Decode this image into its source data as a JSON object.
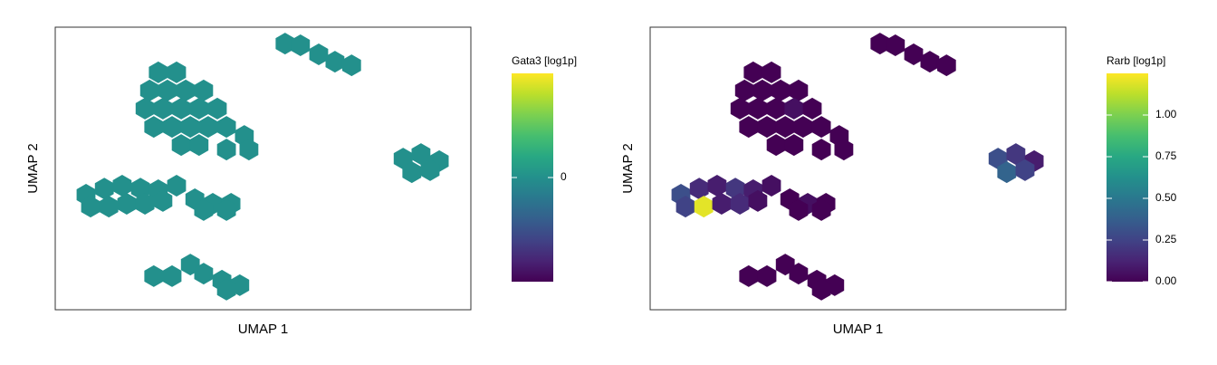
{
  "chart_data": [
    {
      "type": "scatter",
      "x_label": "UMAP 1",
      "y_label": "UMAP 2",
      "colorbar_title": "Gata3 [log1p]",
      "colormap": "viridis",
      "xlim": [
        0,
        10
      ],
      "ylim": [
        0,
        10
      ],
      "clim": [
        -0.5,
        0.5
      ],
      "cticks": [
        0
      ],
      "x": [
        5.53,
        5.9,
        6.34,
        6.73,
        7.13,
        2.48,
        2.92,
        2.27,
        2.7,
        3.14,
        3.57,
        2.16,
        2.59,
        3.03,
        3.46,
        3.9,
        2.37,
        2.81,
        3.25,
        3.68,
        4.12,
        4.55,
        3.03,
        3.46,
        4.12,
        4.66,
        8.37,
        8.8,
        9.24,
        8.58,
        9.02,
        0.74,
        1.18,
        1.61,
        2.05,
        2.48,
        2.92,
        0.85,
        1.29,
        1.72,
        2.16,
        2.59,
        3.36,
        3.79,
        4.23,
        3.57,
        4.12,
        2.37,
        2.81,
        3.25,
        3.57,
        4.01,
        4.44,
        4.12
      ],
      "y": [
        9.42,
        9.36,
        9.04,
        8.78,
        8.65,
        8.4,
        8.4,
        7.76,
        7.76,
        7.76,
        7.76,
        7.12,
        7.12,
        7.12,
        7.12,
        7.12,
        6.47,
        6.47,
        6.47,
        6.47,
        6.47,
        6.15,
        5.83,
        5.83,
        5.67,
        5.67,
        5.35,
        5.51,
        5.26,
        4.87,
        4.94,
        4.07,
        4.29,
        4.39,
        4.29,
        4.23,
        4.39,
        3.65,
        3.65,
        3.75,
        3.75,
        3.85,
        3.91,
        3.75,
        3.75,
        3.53,
        3.53,
        1.19,
        1.19,
        1.6,
        1.28,
        1.03,
        0.87,
        0.71
      ],
      "values": [
        0,
        0,
        0,
        0,
        0,
        0,
        0,
        0,
        0,
        0,
        0,
        0,
        0,
        0,
        0,
        0,
        0,
        0,
        0,
        0,
        0,
        0,
        0,
        0,
        0,
        0,
        0,
        0,
        0,
        0,
        0,
        0,
        0,
        0,
        0,
        0,
        0,
        0,
        0,
        0,
        0,
        0,
        0,
        0,
        0,
        0,
        0,
        0,
        0,
        0,
        0,
        0,
        0,
        0
      ]
    },
    {
      "type": "scatter",
      "x_label": "UMAP 1",
      "y_label": "UMAP 2",
      "colorbar_title": "Rarb [log1p]",
      "colormap": "viridis",
      "xlim": [
        0,
        10
      ],
      "ylim": [
        0,
        10
      ],
      "clim": [
        0,
        1.25
      ],
      "cticks": [
        {
          "value": 0,
          "label": "0.00"
        },
        {
          "value": 0.25,
          "label": "0.25"
        },
        {
          "value": 0.5,
          "label": "0.50"
        },
        {
          "value": 0.75,
          "label": "0.75"
        },
        {
          "value": 1.0,
          "label": "1.00"
        }
      ],
      "x": [
        5.53,
        5.9,
        6.34,
        6.73,
        7.13,
        2.48,
        2.92,
        2.27,
        2.7,
        3.14,
        3.57,
        2.16,
        2.59,
        3.03,
        3.46,
        3.9,
        2.37,
        2.81,
        3.25,
        3.68,
        4.12,
        4.55,
        3.03,
        3.46,
        4.12,
        4.66,
        8.37,
        8.8,
        9.24,
        8.58,
        9.02,
        0.74,
        1.18,
        1.61,
        2.05,
        2.48,
        2.92,
        0.85,
        1.29,
        1.72,
        2.16,
        2.59,
        3.36,
        3.79,
        4.23,
        3.57,
        4.12,
        2.37,
        2.81,
        3.25,
        3.57,
        4.01,
        4.44,
        4.12
      ],
      "y": [
        9.42,
        9.36,
        9.04,
        8.78,
        8.65,
        8.4,
        8.4,
        7.76,
        7.76,
        7.76,
        7.76,
        7.12,
        7.12,
        7.12,
        7.12,
        7.12,
        6.47,
        6.47,
        6.47,
        6.47,
        6.47,
        6.15,
        5.83,
        5.83,
        5.67,
        5.67,
        5.35,
        5.51,
        5.26,
        4.87,
        4.94,
        4.07,
        4.29,
        4.39,
        4.29,
        4.23,
        4.39,
        3.65,
        3.65,
        3.75,
        3.75,
        3.85,
        3.91,
        3.75,
        3.75,
        3.53,
        3.53,
        1.19,
        1.19,
        1.6,
        1.28,
        1.03,
        0.87,
        0.71
      ],
      "values": [
        0,
        0,
        0,
        0,
        0,
        0,
        0,
        0,
        0,
        0,
        0,
        0,
        0,
        0,
        0.05,
        0,
        0,
        0,
        0,
        0,
        0,
        0,
        0,
        0,
        0,
        0,
        0.3,
        0.2,
        0.1,
        0.4,
        0.25,
        0.3,
        0.15,
        0.1,
        0.2,
        0.1,
        0.05,
        0.25,
        1.2,
        0.1,
        0.15,
        0.05,
        0,
        0.05,
        0,
        0,
        0,
        0,
        0,
        0,
        0,
        0,
        0,
        0
      ]
    }
  ]
}
